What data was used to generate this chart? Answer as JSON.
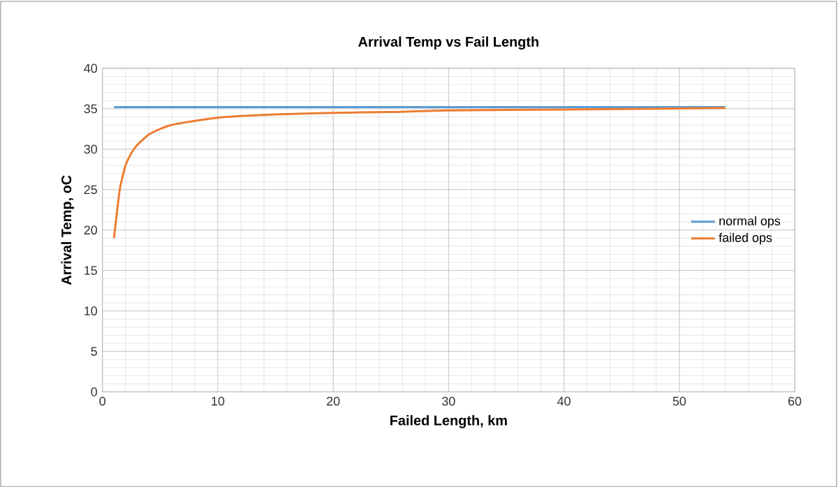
{
  "chart_data": {
    "type": "line",
    "title": "Arrival Temp vs Fail Length",
    "xlabel": "Failed Length, km",
    "ylabel": "Arrival Temp, oC",
    "xlim": [
      0,
      60
    ],
    "xticks": [
      0,
      10,
      20,
      30,
      40,
      50,
      60
    ],
    "ylim": [
      0,
      40
    ],
    "yticks": [
      0,
      5,
      10,
      15,
      20,
      25,
      30,
      35,
      40
    ],
    "grid": true,
    "legend": "right",
    "line_style": "solid",
    "marker": "none",
    "series": [
      {
        "name": "normal ops",
        "color": "#5b9bd5",
        "x": [
          1,
          54
        ],
        "values": [
          35.2,
          35.2
        ]
      },
      {
        "name": "failed ops",
        "color": "#ed7d31",
        "x": [
          1,
          1.5,
          2,
          2.5,
          3,
          4,
          5,
          6,
          8,
          10,
          12,
          15,
          20,
          25,
          30,
          40,
          54
        ],
        "values": [
          19,
          25,
          28,
          29.5,
          30.5,
          31.8,
          32.5,
          33,
          33.5,
          33.9,
          34.1,
          34.3,
          34.5,
          34.6,
          34.8,
          34.9,
          35.1
        ]
      }
    ]
  }
}
